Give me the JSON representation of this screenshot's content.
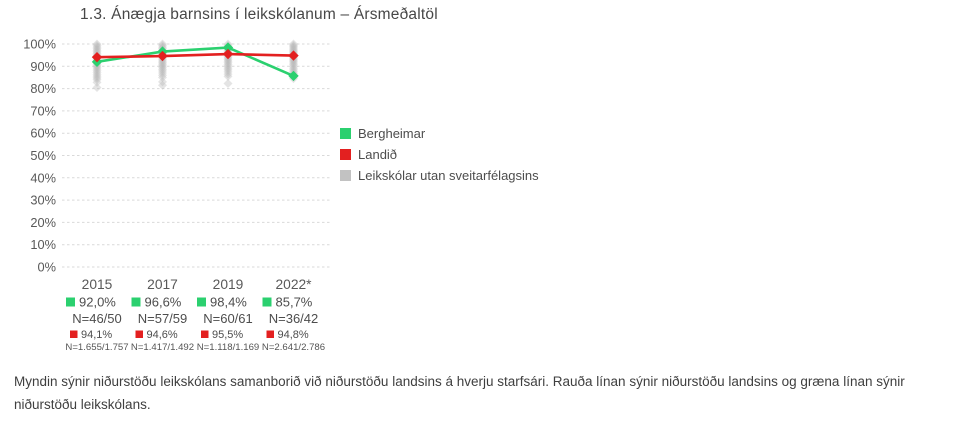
{
  "title": "1.3. Ánægja barnsins í leikskólanum – Ársmeðaltöl",
  "legend": [
    {
      "label": "Bergheimar",
      "color": "#2bd06f"
    },
    {
      "label": "Landið",
      "color": "#e32020"
    },
    {
      "label": "Leikskólar utan sveitarfélagsins",
      "color": "#c2c2c2"
    }
  ],
  "footnote": "Myndin sýnir niðurstöðu leikskólans samanborið við niðurstöðu landsins á hverju starfsári. Rauða línan sýnir niðurstöðu landsins og græna línan sýnir niðurstöðu leikskólans.",
  "chart_data": {
    "type": "line",
    "title": "1.3. Ánægja barnsins í leikskólanum – Ársmeðaltöl",
    "categories": [
      "2015",
      "2017",
      "2019",
      "2022*"
    ],
    "ylim": [
      0,
      100
    ],
    "ytick_values": [
      100,
      90,
      80,
      70,
      60,
      50,
      40,
      30,
      20,
      10,
      0
    ],
    "yticks": [
      "100%",
      "90%",
      "80%",
      "70%",
      "60%",
      "50%",
      "40%",
      "30%",
      "20%",
      "10%",
      "0%"
    ],
    "grid": "dashed horizontal",
    "legend_position": "right",
    "series": [
      {
        "name": "Bergheimar",
        "color": "#2bd06f",
        "values": [
          92.0,
          96.6,
          98.4,
          85.7
        ],
        "labels": [
          "92,0%",
          "96,6%",
          "98,4%",
          "85,7%"
        ],
        "n_labels": [
          "N=46/50",
          "N=57/59",
          "N=60/61",
          "N=36/42"
        ]
      },
      {
        "name": "Landið",
        "color": "#e32020",
        "values": [
          94.1,
          94.6,
          95.5,
          94.8
        ],
        "labels": [
          "94,1%",
          "94,6%",
          "95,5%",
          "94,8%"
        ],
        "n_labels": [
          "N=1.655/1.757",
          "N=1.417/1.492",
          "N=1.118/1.169",
          "N=2.641/2.786"
        ]
      },
      {
        "name": "Leikskólar utan sveitarfélagsins",
        "color": "#b9b9b9",
        "type": "scatter",
        "scatter": [
          [
            100,
            99.3,
            98.6,
            97.9,
            97.2,
            96.5,
            95.8,
            95.1,
            94.4,
            93.7,
            93,
            92.3,
            91.6,
            90.9,
            90.2,
            89.5,
            88.8,
            88,
            87.2,
            86.4,
            85.6,
            84.8,
            84,
            82.8,
            80.5
          ],
          [
            100,
            99.3,
            98.6,
            97.9,
            97.2,
            96.5,
            95.8,
            95.1,
            94.4,
            93.7,
            93,
            92.3,
            91.6,
            90.9,
            90.2,
            89.5,
            88.7,
            87.9,
            87,
            86,
            85,
            83,
            81.5
          ],
          [
            100,
            99.3,
            98.6,
            97.9,
            97.2,
            96.5,
            95.8,
            95.1,
            94.4,
            93.7,
            93,
            92.3,
            91.6,
            90.8,
            90,
            89.2,
            88.4,
            87.5,
            86.5,
            85.5,
            82.3
          ],
          [
            100,
            99.4,
            98.8,
            98.2,
            97.6,
            97,
            96.4,
            95.8,
            95.2,
            94.6,
            94,
            93.4,
            92.8,
            92.2,
            91.5,
            90.8,
            90,
            89.2,
            88.4,
            87.6,
            86.8,
            86,
            85.2,
            84.5
          ]
        ]
      }
    ]
  }
}
